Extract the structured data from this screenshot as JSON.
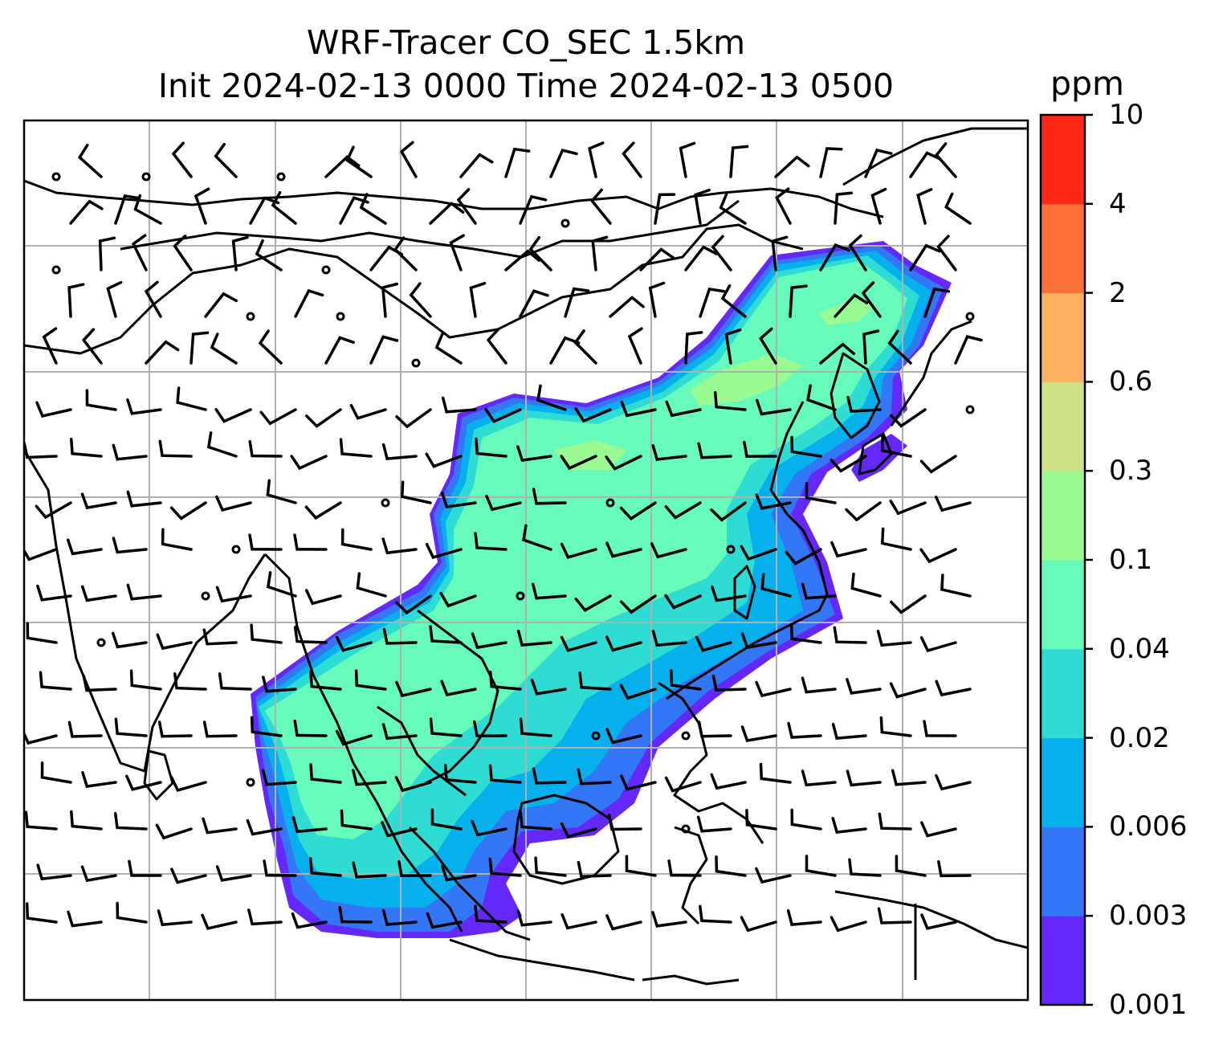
{
  "title": {
    "line1": "WRF-Tracer CO_SEC 1.5km",
    "line2": "Init 2024-02-13 0000 Time 2024-02-13 0500"
  },
  "colorbar": {
    "unit": "ppm",
    "levels": [
      "0.001",
      "0.003",
      "0.006",
      "0.02",
      "0.04",
      "0.1",
      "0.3",
      "0.6",
      "2",
      "4",
      "10"
    ],
    "colors": [
      "#6528fa",
      "#3376f6",
      "#06b0ec",
      "#2fdcd3",
      "#67fbbb",
      "#9afa92",
      "#cde285",
      "#ffb061",
      "#fe7139",
      "#ff2816"
    ]
  },
  "map": {
    "colors": {
      "coastline": "#000000",
      "gridline": "#b0b0b0",
      "barb": "#000000",
      "background": "#ffffff"
    }
  }
}
